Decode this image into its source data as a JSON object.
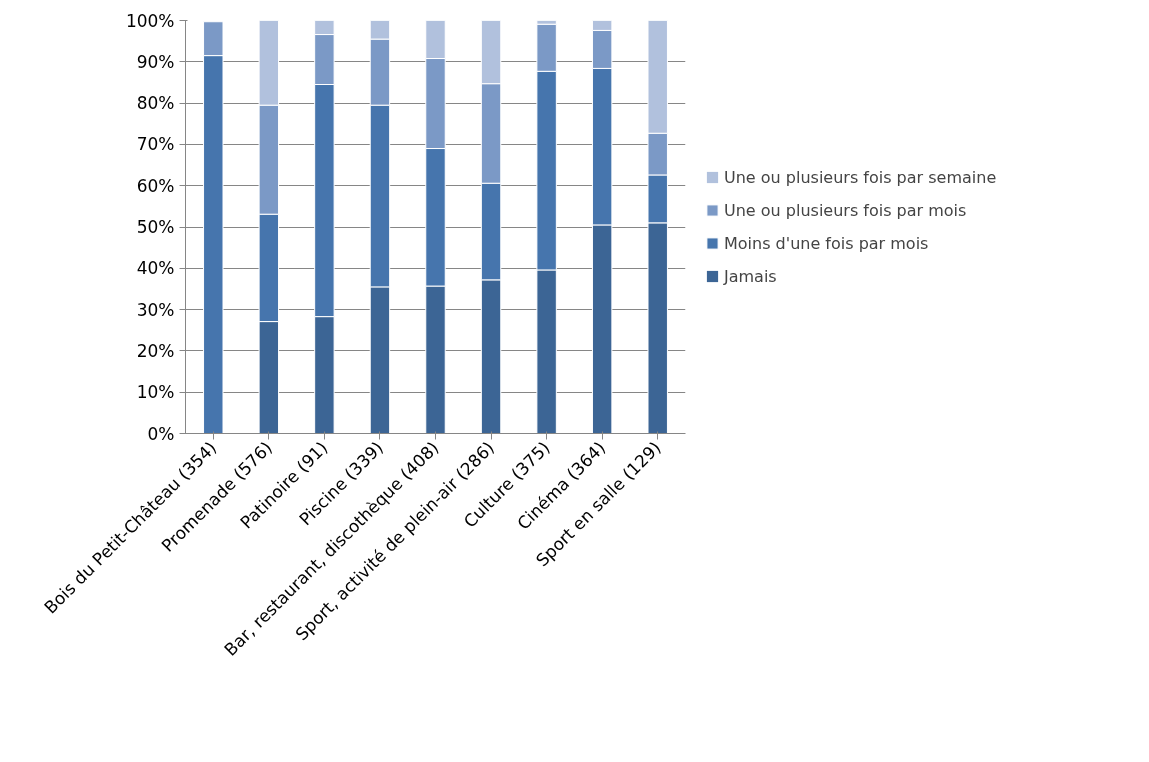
{
  "chart_data": {
    "type": "bar",
    "stacked": true,
    "categories": [
      "Bois du Petit-Château (354)",
      "Promenade (576)",
      "Patinoire (91)",
      "Piscine (339)",
      "Bar, restaurant, discothèque (408)",
      "Sport, activité de plein-air (286)",
      "Culture (375)",
      "Cinéma (364)",
      "Sport en salle (129)"
    ],
    "series": [
      {
        "name": "Jamais",
        "color": "#3c6595",
        "values": [
          0,
          27.1,
          28.3,
          35.5,
          35.7,
          37.2,
          39.6,
          50.5,
          51.0
        ]
      },
      {
        "name": "Moins d'une fois par mois",
        "color": "#4675ad",
        "values": [
          91.5,
          26.0,
          56.2,
          44.0,
          33.3,
          23.4,
          48.1,
          37.9,
          11.6
        ]
      },
      {
        "name": "Une ou plusieurs fois par mois",
        "color": "#7b99c6",
        "values": [
          8.2,
          26.4,
          12.1,
          16.0,
          21.8,
          24.1,
          11.4,
          9.2,
          10.1
        ]
      },
      {
        "name": "Une ou plusieurs fois par semaine",
        "color": "#b1c1dd",
        "values": [
          0,
          20.5,
          3.4,
          4.5,
          9.2,
          15.3,
          0.9,
          2.4,
          27.3
        ]
      }
    ],
    "ylim": [
      0,
      100
    ],
    "yticks": [
      {
        "value": 0,
        "label": "0%"
      },
      {
        "value": 10,
        "label": "10%"
      },
      {
        "value": 20,
        "label": "20%"
      },
      {
        "value": 30,
        "label": "30%"
      },
      {
        "value": 40,
        "label": "40%"
      },
      {
        "value": 50,
        "label": "50%"
      },
      {
        "value": 60,
        "label": "60%"
      },
      {
        "value": 70,
        "label": "70%"
      },
      {
        "value": 80,
        "label": "80%"
      },
      {
        "value": 90,
        "label": "90%"
      },
      {
        "value": 100,
        "label": "100%"
      }
    ],
    "grid": "y",
    "legend": "right"
  }
}
